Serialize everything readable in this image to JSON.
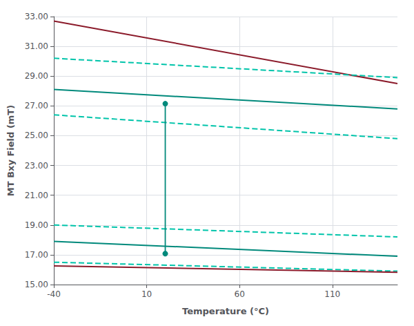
{
  "chart_data": {
    "type": "line",
    "xlabel": "Temperature (°C)",
    "ylabel": "MT Bxy Field (mT)",
    "xlim": [
      -40,
      145
    ],
    "ylim": [
      15.0,
      33.0
    ],
    "xticks": [
      -40,
      10,
      60,
      110
    ],
    "yticks": [
      {
        "value": 15.0,
        "label": "15.00"
      },
      {
        "value": 17.0,
        "label": "17.00"
      },
      {
        "value": 19.0,
        "label": "19.00"
      },
      {
        "value": 21.0,
        "label": "21.00"
      },
      {
        "value": 23.0,
        "label": "23.00"
      },
      {
        "value": 25.0,
        "label": "25.00"
      },
      {
        "value": 27.0,
        "label": "27.00"
      },
      {
        "value": 29.0,
        "label": "29.00"
      },
      {
        "value": 31.0,
        "label": "31.00"
      },
      {
        "value": 33.0,
        "label": "33.00"
      }
    ],
    "grid": true,
    "series": [
      {
        "x": [
          -40,
          145
        ],
        "values": [
          32.7,
          28.5
        ],
        "color": "#8b1a2a",
        "line_style": "solid"
      },
      {
        "x": [
          -40,
          145
        ],
        "values": [
          30.2,
          28.9
        ],
        "color": "#00c4aa",
        "line_style": "dashed"
      },
      {
        "x": [
          -40,
          145
        ],
        "values": [
          28.1,
          26.8
        ],
        "color": "#00897b",
        "line_style": "solid"
      },
      {
        "x": [
          -40,
          145
        ],
        "values": [
          26.4,
          24.8
        ],
        "color": "#00c4aa",
        "line_style": "dashed"
      },
      {
        "x": [
          -40,
          145
        ],
        "values": [
          19.0,
          18.2
        ],
        "color": "#00c4aa",
        "line_style": "dashed"
      },
      {
        "x": [
          -40,
          145
        ],
        "values": [
          17.9,
          16.9
        ],
        "color": "#00897b",
        "line_style": "solid"
      },
      {
        "x": [
          -40,
          145
        ],
        "values": [
          16.5,
          15.9
        ],
        "color": "#00c4aa",
        "line_style": "dashed"
      },
      {
        "x": [
          -40,
          145
        ],
        "values": [
          16.25,
          15.82
        ],
        "color": "#8b1a2a",
        "line_style": "solid"
      },
      {
        "x": [
          20,
          20
        ],
        "values": [
          17.08,
          27.15
        ],
        "color": "#00897b",
        "line_style": "solid",
        "marker": "circle"
      }
    ]
  }
}
